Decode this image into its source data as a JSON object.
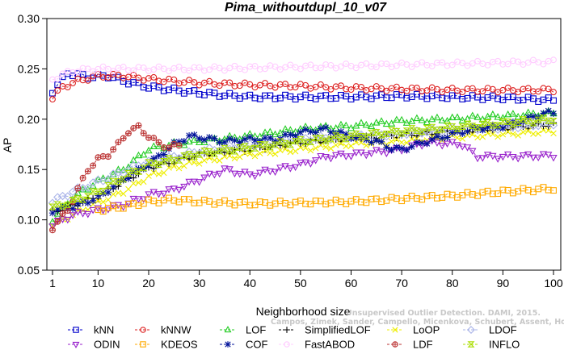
{
  "chart_data": {
    "type": "line",
    "title": "Pima_withoutdupl_10_v07",
    "xlabel": "Neighborhood size",
    "ylabel": "AP",
    "xlim": [
      0,
      100
    ],
    "ylim": [
      0.05,
      0.3
    ],
    "x_ticks": [
      1,
      10,
      20,
      30,
      40,
      50,
      60,
      70,
      80,
      90,
      100
    ],
    "y_ticks": [
      0.05,
      0.1,
      0.15,
      0.2,
      0.25,
      0.3
    ],
    "y_tick_labels": [
      "0.05",
      "0.10",
      "0.15",
      "0.20",
      "0.25",
      "0.30"
    ],
    "grid": false,
    "legend_position": "bottom",
    "watermark": [
      "Unsupervised Outlier Detection. DAMI, 2015.",
      "Campos, Zimek, Sander, Campello, Micenkova, Schubert, Assent, Houle"
    ],
    "series": [
      {
        "name": "kNN",
        "color": "#0000cc",
        "marker": "square",
        "knots": [
          [
            1,
            0.228
          ],
          [
            4,
            0.246
          ],
          [
            8,
            0.242
          ],
          [
            12,
            0.243
          ],
          [
            15,
            0.238
          ],
          [
            20,
            0.232
          ],
          [
            30,
            0.226
          ],
          [
            40,
            0.222
          ],
          [
            50,
            0.222
          ],
          [
            60,
            0.222
          ],
          [
            70,
            0.223
          ],
          [
            80,
            0.222
          ],
          [
            90,
            0.221
          ],
          [
            100,
            0.219
          ]
        ]
      },
      {
        "name": "kNNW",
        "color": "#dd2222",
        "marker": "circle",
        "knots": [
          [
            1,
            0.221
          ],
          [
            3,
            0.232
          ],
          [
            6,
            0.238
          ],
          [
            10,
            0.243
          ],
          [
            15,
            0.243
          ],
          [
            20,
            0.24
          ],
          [
            30,
            0.236
          ],
          [
            40,
            0.234
          ],
          [
            50,
            0.233
          ],
          [
            60,
            0.231
          ],
          [
            70,
            0.23
          ],
          [
            80,
            0.229
          ],
          [
            90,
            0.229
          ],
          [
            100,
            0.229
          ]
        ]
      },
      {
        "name": "LOF",
        "color": "#22cc22",
        "marker": "triangle-up",
        "knots": [
          [
            1,
            0.1
          ],
          [
            5,
            0.122
          ],
          [
            10,
            0.138
          ],
          [
            15,
            0.15
          ],
          [
            20,
            0.17
          ],
          [
            25,
            0.175
          ],
          [
            30,
            0.178
          ],
          [
            40,
            0.183
          ],
          [
            50,
            0.19
          ],
          [
            60,
            0.193
          ],
          [
            70,
            0.198
          ],
          [
            80,
            0.2
          ],
          [
            90,
            0.203
          ],
          [
            100,
            0.206
          ]
        ]
      },
      {
        "name": "SimplifiedLOF",
        "color": "#000000",
        "marker": "plus",
        "knots": [
          [
            1,
            0.108
          ],
          [
            5,
            0.114
          ],
          [
            10,
            0.123
          ],
          [
            15,
            0.138
          ],
          [
            20,
            0.152
          ],
          [
            25,
            0.158
          ],
          [
            30,
            0.165
          ],
          [
            40,
            0.17
          ],
          [
            50,
            0.177
          ],
          [
            60,
            0.181
          ],
          [
            70,
            0.184
          ],
          [
            80,
            0.188
          ],
          [
            90,
            0.191
          ],
          [
            100,
            0.195
          ]
        ]
      },
      {
        "name": "LoOP",
        "color": "#eeee00",
        "marker": "cross",
        "knots": [
          [
            1,
            0.095
          ],
          [
            5,
            0.105
          ],
          [
            10,
            0.117
          ],
          [
            15,
            0.128
          ],
          [
            20,
            0.143
          ],
          [
            25,
            0.152
          ],
          [
            30,
            0.158
          ],
          [
            40,
            0.165
          ],
          [
            50,
            0.17
          ],
          [
            60,
            0.175
          ],
          [
            70,
            0.178
          ],
          [
            80,
            0.182
          ],
          [
            90,
            0.185
          ],
          [
            100,
            0.188
          ]
        ]
      },
      {
        "name": "LDOF",
        "color": "#aab4e8",
        "marker": "diamond",
        "knots": [
          [
            1,
            0.118
          ],
          [
            5,
            0.128
          ],
          [
            10,
            0.138
          ],
          [
            15,
            0.148
          ],
          [
            20,
            0.158
          ],
          [
            25,
            0.162
          ],
          [
            30,
            0.168
          ],
          [
            40,
            0.175
          ],
          [
            50,
            0.18
          ],
          [
            60,
            0.183
          ],
          [
            70,
            0.186
          ],
          [
            80,
            0.19
          ],
          [
            90,
            0.192
          ],
          [
            100,
            0.196
          ]
        ]
      },
      {
        "name": "ODIN",
        "color": "#9922cc",
        "marker": "triangle-down",
        "knots": [
          [
            1,
            0.095
          ],
          [
            5,
            0.105
          ],
          [
            10,
            0.11
          ],
          [
            15,
            0.115
          ],
          [
            20,
            0.125
          ],
          [
            25,
            0.13
          ],
          [
            30,
            0.14
          ],
          [
            35,
            0.15
          ],
          [
            40,
            0.145
          ],
          [
            50,
            0.155
          ],
          [
            55,
            0.163
          ],
          [
            60,
            0.165
          ],
          [
            70,
            0.17
          ],
          [
            75,
            0.177
          ],
          [
            82,
            0.175
          ],
          [
            85,
            0.163
          ],
          [
            90,
            0.163
          ],
          [
            100,
            0.164
          ]
        ]
      },
      {
        "name": "KDEOS",
        "color": "#ffaa00",
        "marker": "square",
        "knots": [
          [
            10,
            0.11
          ],
          [
            15,
            0.113
          ],
          [
            20,
            0.118
          ],
          [
            25,
            0.12
          ],
          [
            30,
            0.118
          ],
          [
            40,
            0.116
          ],
          [
            50,
            0.117
          ],
          [
            60,
            0.118
          ],
          [
            70,
            0.121
          ],
          [
            80,
            0.124
          ],
          [
            90,
            0.128
          ],
          [
            100,
            0.131
          ]
        ]
      },
      {
        "name": "COF",
        "color": "#001199",
        "marker": "star",
        "knots": [
          [
            1,
            0.109
          ],
          [
            5,
            0.113
          ],
          [
            10,
            0.122
          ],
          [
            15,
            0.14
          ],
          [
            20,
            0.155
          ],
          [
            25,
            0.175
          ],
          [
            28,
            0.183
          ],
          [
            30,
            0.182
          ],
          [
            35,
            0.178
          ],
          [
            40,
            0.18
          ],
          [
            45,
            0.18
          ],
          [
            50,
            0.187
          ],
          [
            55,
            0.19
          ],
          [
            60,
            0.183
          ],
          [
            65,
            0.178
          ],
          [
            68,
            0.171
          ],
          [
            70,
            0.17
          ],
          [
            75,
            0.178
          ],
          [
            80,
            0.185
          ],
          [
            85,
            0.191
          ],
          [
            90,
            0.193
          ],
          [
            95,
            0.2
          ],
          [
            98,
            0.206
          ],
          [
            100,
            0.206
          ]
        ]
      },
      {
        "name": "FastABOD",
        "color": "#ffccff",
        "marker": "circle",
        "knots": [
          [
            1,
            0.24
          ],
          [
            5,
            0.248
          ],
          [
            10,
            0.25
          ],
          [
            20,
            0.25
          ],
          [
            30,
            0.25
          ],
          [
            40,
            0.251
          ],
          [
            50,
            0.252
          ],
          [
            60,
            0.253
          ],
          [
            70,
            0.254
          ],
          [
            80,
            0.255
          ],
          [
            90,
            0.256
          ],
          [
            100,
            0.257
          ]
        ]
      },
      {
        "name": "LDF",
        "color": "#bb3333",
        "marker": "circle-cross",
        "knots": [
          [
            1,
            0.092
          ],
          [
            4,
            0.11
          ],
          [
            6,
            0.13
          ],
          [
            8,
            0.15
          ],
          [
            10,
            0.16
          ],
          [
            12,
            0.165
          ],
          [
            14,
            0.175
          ],
          [
            16,
            0.188
          ],
          [
            18,
            0.192
          ],
          [
            20,
            0.183
          ],
          [
            22,
            0.176
          ],
          [
            24,
            0.172
          ],
          [
            26,
            0.174
          ]
        ]
      },
      {
        "name": "INFLO",
        "color": "#aadd00",
        "marker": "hourglass",
        "knots": [
          [
            1,
            0.112
          ],
          [
            5,
            0.118
          ],
          [
            10,
            0.128
          ],
          [
            15,
            0.142
          ],
          [
            20,
            0.155
          ],
          [
            25,
            0.16
          ],
          [
            30,
            0.166
          ],
          [
            40,
            0.172
          ],
          [
            50,
            0.178
          ],
          [
            60,
            0.183
          ],
          [
            70,
            0.188
          ],
          [
            80,
            0.192
          ],
          [
            90,
            0.196
          ],
          [
            100,
            0.2
          ]
        ]
      }
    ]
  }
}
